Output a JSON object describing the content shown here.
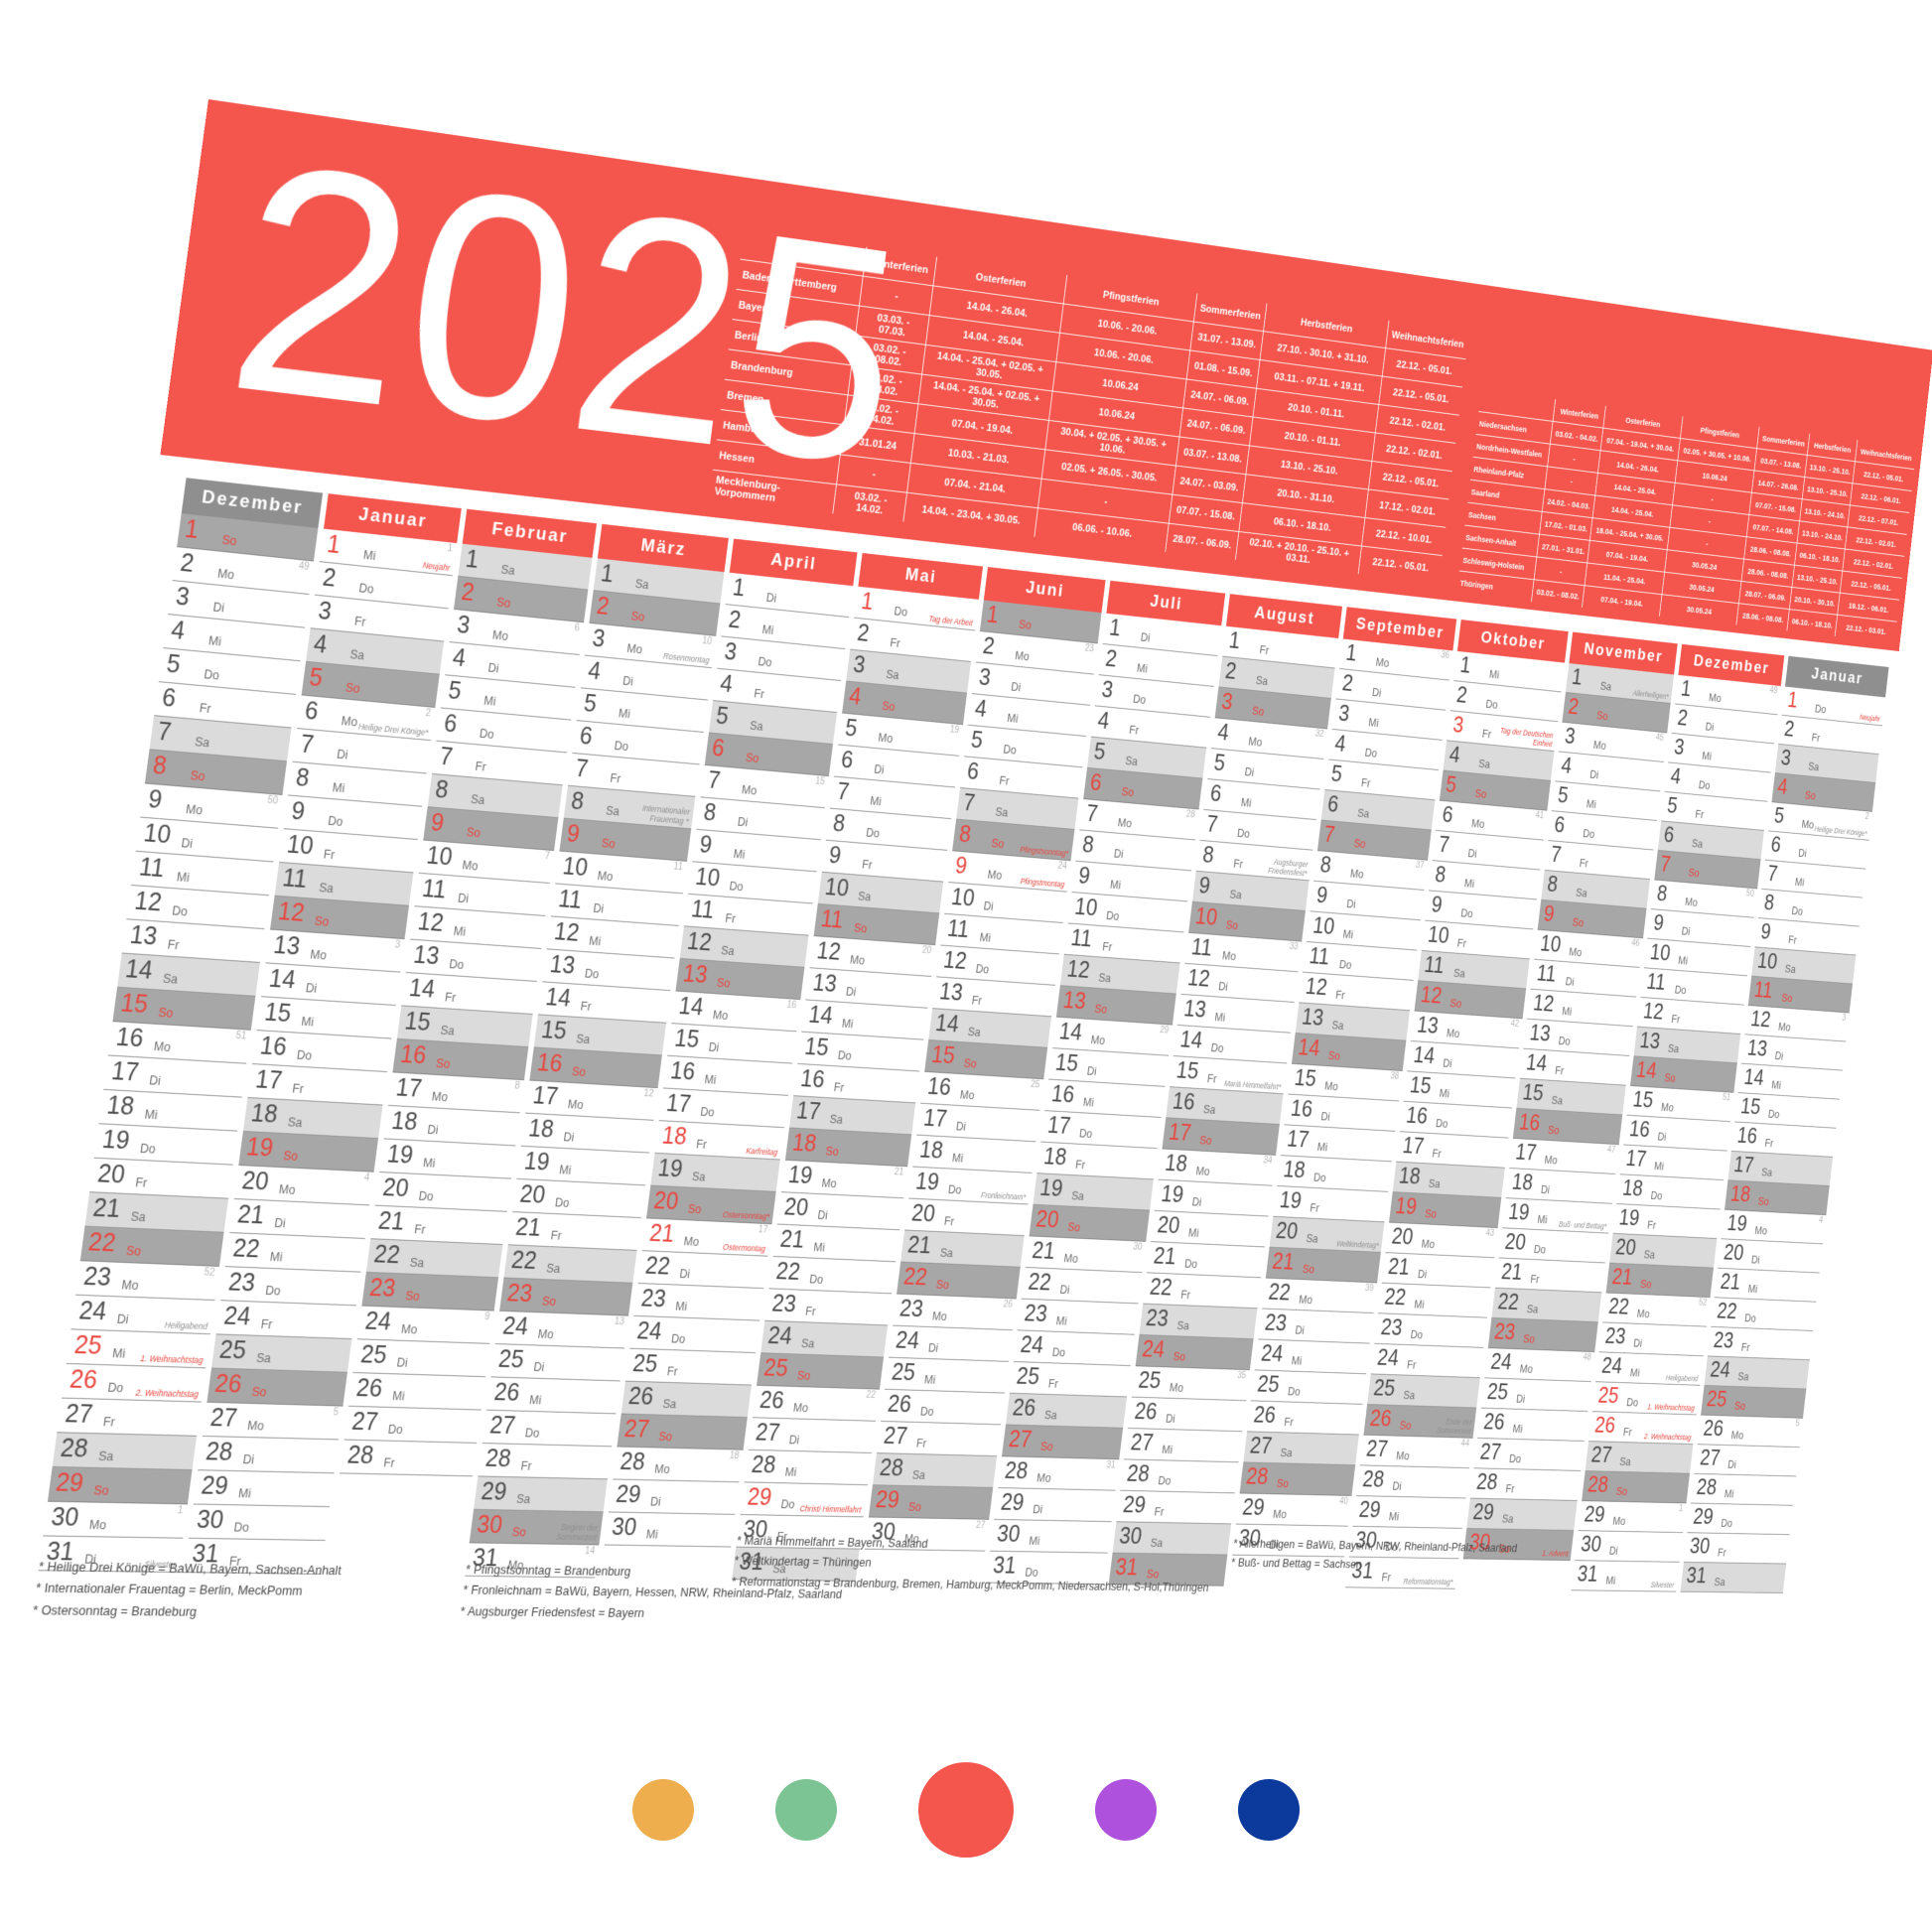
{
  "year": "2025",
  "colors": {
    "banner": "#F4564E",
    "holiday_red": "#E8463F",
    "sunday_row": "#A7A7A7",
    "saturday_row": "#DBDBDB",
    "gray_header": "#8F8F8F"
  },
  "weekday_cycle": [
    "Mo",
    "Di",
    "Mi",
    "Do",
    "Fr",
    "Sa",
    "So"
  ],
  "ferien_tables": [
    {
      "columns": [
        "Winterferien",
        "Osterferien",
        "Pfingstferien",
        "Sommerferien",
        "Herbstferien",
        "Weihnachtsferien"
      ],
      "rows": [
        {
          "state": "Baden-Württemberg",
          "values": [
            "-",
            "14.04. - 26.04.",
            "10.06. - 20.06.",
            "31.07. - 13.09.",
            "27.10. - 30.10. + 31.10.",
            "22.12. - 05.01."
          ]
        },
        {
          "state": "Bayern",
          "values": [
            "03.03. - 07.03.",
            "14.04. - 25.04.",
            "10.06. - 20.06.",
            "01.08. - 15.09.",
            "03.11. - 07.11. + 19.11.",
            "22.12. - 05.01."
          ]
        },
        {
          "state": "Berlin",
          "values": [
            "03.02. - 08.02.",
            "14.04. - 25.04. + 02.05. + 30.05.",
            "10.06.24",
            "24.07. - 06.09.",
            "20.10. - 01.11.",
            "22.12. - 02.01."
          ]
        },
        {
          "state": "Brandenburg",
          "values": [
            "03.02. - 08.02.",
            "14.04. - 25.04. + 02.05. + 30.05.",
            "10.06.24",
            "24.07. - 06.09.",
            "20.10. - 01.11.",
            "22.12. - 02.01."
          ]
        },
        {
          "state": "Bremen",
          "values": [
            "03.02. - 04.02.",
            "07.04. - 19.04.",
            "30.04. + 02.05. + 30.05. + 10.06.",
            "03.07. - 13.08.",
            "13.10. - 25.10.",
            "22.12. - 05.01."
          ]
        },
        {
          "state": "Hamburg",
          "values": [
            "31.01.24",
            "10.03. - 21.03.",
            "02.05. + 26.05. - 30.05.",
            "24.07. - 03.09.",
            "20.10. - 31.10.",
            "17.12. - 02.01."
          ]
        },
        {
          "state": "Hessen",
          "values": [
            "-",
            "07.04. - 21.04.",
            "-",
            "07.07. - 15.08.",
            "06.10. - 18.10.",
            "22.12. - 10.01."
          ]
        },
        {
          "state": "Mecklenburg-Vorpommern",
          "values": [
            "03.02. - 14.02.",
            "14.04. - 23.04. + 30.05.",
            "06.06. - 10.06.",
            "28.07. - 06.09.",
            "02.10. + 20.10. - 25.10. + 03.11.",
            "22.12. - 05.01."
          ]
        }
      ]
    },
    {
      "columns": [
        "Winterferien",
        "Osterferien",
        "Pfingstferien",
        "Sommerferien",
        "Herbstferien",
        "Weihnachtsferien"
      ],
      "rows": [
        {
          "state": "Niedersachsen",
          "values": [
            "03.02. - 04.02.",
            "07.04. - 19.04. + 30.04.",
            "02.05. + 30.05. + 10.06.",
            "03.07. - 13.08.",
            "13.10. - 25.10.",
            "22.12. - 05.01."
          ]
        },
        {
          "state": "Nordrhein-Westfalen",
          "values": [
            "-",
            "14.04. - 26.04.",
            "10.06.24",
            "14.07. - 26.08.",
            "13.10. - 25.10.",
            "22.12. - 06.01."
          ]
        },
        {
          "state": "Rheinland-Pfalz",
          "values": [
            "-",
            "14.04. - 25.04.",
            "-",
            "07.07. - 15.08.",
            "13.10. - 24.10.",
            "22.12. - 07.01."
          ]
        },
        {
          "state": "Saarland",
          "values": [
            "24.02. - 04.03.",
            "14.04. - 25.04.",
            "-",
            "07.07. - 14.08.",
            "13.10. - 24.10.",
            "22.12. - 02.01."
          ]
        },
        {
          "state": "Sachsen",
          "values": [
            "17.02. - 01.03.",
            "18.04. - 25.04. + 30.05.",
            "-",
            "28.06. - 08.08.",
            "06.10. - 18.10.",
            "22.12. - 02.01."
          ]
        },
        {
          "state": "Sachsen-Anhalt",
          "values": [
            "27.01. - 31.01.",
            "07.04. - 19.04.",
            "30.05.24",
            "28.06. - 08.08.",
            "13.10. - 25.10.",
            "22.12. - 05.01."
          ]
        },
        {
          "state": "Schleswig-Holstein",
          "values": [
            "-",
            "11.04. - 25.04.",
            "30.05.24",
            "28.07. - 06.09.",
            "20.10. - 30.10.",
            "19.12. - 06.01."
          ]
        },
        {
          "state": "Thüringen",
          "values": [
            "03.02. - 08.02.",
            "07.04. - 19.04.",
            "30.05.24",
            "28.06. - 08.08.",
            "06.10. - 18.10.",
            "22.12. - 03.01."
          ]
        }
      ]
    }
  ],
  "months": [
    {
      "name": "Dezember",
      "header": "gray",
      "first": "So",
      "days": 31,
      "weeks": {
        "2": 49,
        "9": 50,
        "16": 51,
        "23": 52,
        "30": 1
      },
      "red": [
        25,
        26
      ],
      "notes": {
        "24": {
          "t": "Heiligabend",
          "c": "gray"
        },
        "25": {
          "t": "1. Weihnachtstag",
          "c": "red"
        },
        "26": {
          "t": "2. Weihnachtstag",
          "c": "red"
        },
        "31": {
          "t": "Silvester",
          "c": "gray"
        }
      }
    },
    {
      "name": "Januar",
      "header": "red",
      "first": "Mi",
      "days": 31,
      "weeks": {
        "1": 1,
        "6": 2,
        "13": 3,
        "20": 4,
        "27": 5
      },
      "red": [
        1
      ],
      "notes": {
        "1": {
          "t": "Neujahr",
          "c": "red"
        },
        "6": {
          "t": "Heilige Drei Könige*",
          "c": "gray"
        }
      }
    },
    {
      "name": "Februar",
      "header": "red",
      "first": "Sa",
      "days": 28,
      "weeks": {
        "3": 6,
        "10": 7,
        "17": 8,
        "24": 9
      },
      "red": [],
      "notes": {}
    },
    {
      "name": "März",
      "header": "red",
      "first": "Sa",
      "days": 31,
      "weeks": {
        "3": 10,
        "10": 11,
        "17": 12,
        "24": 13,
        "31": 14
      },
      "red": [],
      "notes": {
        "3": {
          "t": "Rosenmontag",
          "c": "gray"
        },
        "8": {
          "t": "Internationaler Frauentag *",
          "c": "gray"
        },
        "30": {
          "t": "Beginn der Sommerzeit",
          "c": "gray"
        }
      }
    },
    {
      "name": "April",
      "header": "red",
      "first": "Di",
      "days": 30,
      "weeks": {
        "7": 15,
        "14": 16,
        "21": 17,
        "28": 18
      },
      "red": [
        18,
        21
      ],
      "notes": {
        "18": {
          "t": "Karfreitag",
          "c": "red"
        },
        "20": {
          "t": "Ostersonntag*",
          "c": "red"
        },
        "21": {
          "t": "Ostermontag",
          "c": "red"
        }
      }
    },
    {
      "name": "Mai",
      "header": "red",
      "first": "Do",
      "days": 31,
      "weeks": {
        "5": 19,
        "12": 20,
        "19": 21,
        "26": 22
      },
      "red": [
        1,
        29
      ],
      "notes": {
        "1": {
          "t": "Tag der Arbeit",
          "c": "red"
        },
        "29": {
          "t": "Christi Himmelfahrt",
          "c": "red"
        }
      }
    },
    {
      "name": "Juni",
      "header": "red",
      "first": "So",
      "days": 30,
      "weeks": {
        "2": 23,
        "9": 24,
        "16": 25,
        "23": 26,
        "30": 27
      },
      "red": [
        9
      ],
      "notes": {
        "8": {
          "t": "Pfingstsonntag*",
          "c": "red"
        },
        "9": {
          "t": "Pfingstmontag",
          "c": "red"
        },
        "19": {
          "t": "Fronleichnam*",
          "c": "gray"
        }
      }
    },
    {
      "name": "Juli",
      "header": "red",
      "first": "Di",
      "days": 31,
      "weeks": {
        "7": 28,
        "14": 29,
        "21": 30,
        "28": 31
      },
      "red": [],
      "notes": {}
    },
    {
      "name": "August",
      "header": "red",
      "first": "Fr",
      "days": 31,
      "weeks": {
        "4": 32,
        "11": 33,
        "18": 34,
        "25": 35
      },
      "red": [],
      "notes": {
        "8": {
          "t": "Augsburger Friedensfest*",
          "c": "gray"
        },
        "15": {
          "t": "Mariä Himmelfahrt*",
          "c": "gray"
        }
      }
    },
    {
      "name": "September",
      "header": "red",
      "first": "Mo",
      "days": 30,
      "weeks": {
        "1": 36,
        "8": 37,
        "15": 38,
        "22": 39,
        "29": 40
      },
      "red": [],
      "notes": {
        "20": {
          "t": "Weltkindertag*",
          "c": "gray"
        }
      }
    },
    {
      "name": "Oktober",
      "header": "red",
      "first": "Mi",
      "days": 31,
      "weeks": {
        "6": 41,
        "13": 42,
        "20": 43,
        "27": 44
      },
      "red": [
        3
      ],
      "notes": {
        "3": {
          "t": "Tag der Deutschen Einheit",
          "c": "red"
        },
        "26": {
          "t": "Ende der Sommerzeit",
          "c": "gray"
        },
        "31": {
          "t": "Reformationstag*",
          "c": "gray"
        }
      }
    },
    {
      "name": "November",
      "header": "red",
      "first": "Sa",
      "days": 30,
      "weeks": {
        "3": 45,
        "10": 46,
        "17": 47,
        "24": 48
      },
      "red": [],
      "notes": {
        "1": {
          "t": "Allerheiligen*",
          "c": "gray"
        },
        "19": {
          "t": "Buß- und Bettag*",
          "c": "gray"
        },
        "30": {
          "t": "1. Advent",
          "c": "red"
        }
      }
    },
    {
      "name": "Dezember",
      "header": "red",
      "first": "Mo",
      "days": 31,
      "weeks": {
        "1": 49,
        "8": 50,
        "15": 51,
        "22": 52,
        "29": 1
      },
      "red": [
        25,
        26
      ],
      "notes": {
        "24": {
          "t": "Heiligabend",
          "c": "gray"
        },
        "25": {
          "t": "1. Weihnachtstag",
          "c": "red"
        },
        "26": {
          "t": "2. Weihnachtstag",
          "c": "red"
        },
        "31": {
          "t": "Silvester",
          "c": "gray"
        }
      }
    },
    {
      "name": "Januar",
      "header": "gray",
      "first": "Do",
      "days": 31,
      "weeks": {
        "5": 2,
        "12": 3,
        "19": 4,
        "26": 5
      },
      "red": [
        1
      ],
      "notes": {
        "1": {
          "t": "Neujahr",
          "c": "red"
        },
        "5": {
          "t": "Heilige Drei Könige*",
          "c": "gray"
        }
      }
    }
  ],
  "footnotes": [
    {
      "lines": [
        "* Heilige Drei Könige = BaWü, Bayern, Sachsen-Anhalt",
        "* Internationaler Frauentag = Berlin, MeckPomm",
        "* Ostersonntag = Brandeburg"
      ]
    },
    {
      "lines": [
        "* Pfingstsonntag = Brandenburg",
        "* Fronleichnam = BaWü, Bayern, Hessen, NRW, Rheinland-Pfalz, Saarland",
        "* Augsburger Friedensfest = Bayern"
      ]
    },
    {
      "lines": [
        "* Mariä Himmelfahrt = Bayern, Saaland",
        "* Weltkindertag = Thüringen",
        "* Reformationstag = Brandenburg, Bremen, Hamburg, MeckPomm, Niedersachsen, S-Hol,Thüringen"
      ]
    },
    {
      "lines": [
        "* Allerheiligen = BaWü, Bayern, NRW, Rheinland-Pfalz, Saarland",
        "* Buß- und Bettag = Sachsen"
      ]
    }
  ],
  "swatches": [
    {
      "name": "orange",
      "color": "#EFAE4D",
      "large": false
    },
    {
      "name": "green",
      "color": "#7CC493",
      "large": false
    },
    {
      "name": "red",
      "color": "#F4564E",
      "large": true
    },
    {
      "name": "purple",
      "color": "#AE52DE",
      "large": false
    },
    {
      "name": "blue",
      "color": "#0B3A9C",
      "large": false
    }
  ]
}
